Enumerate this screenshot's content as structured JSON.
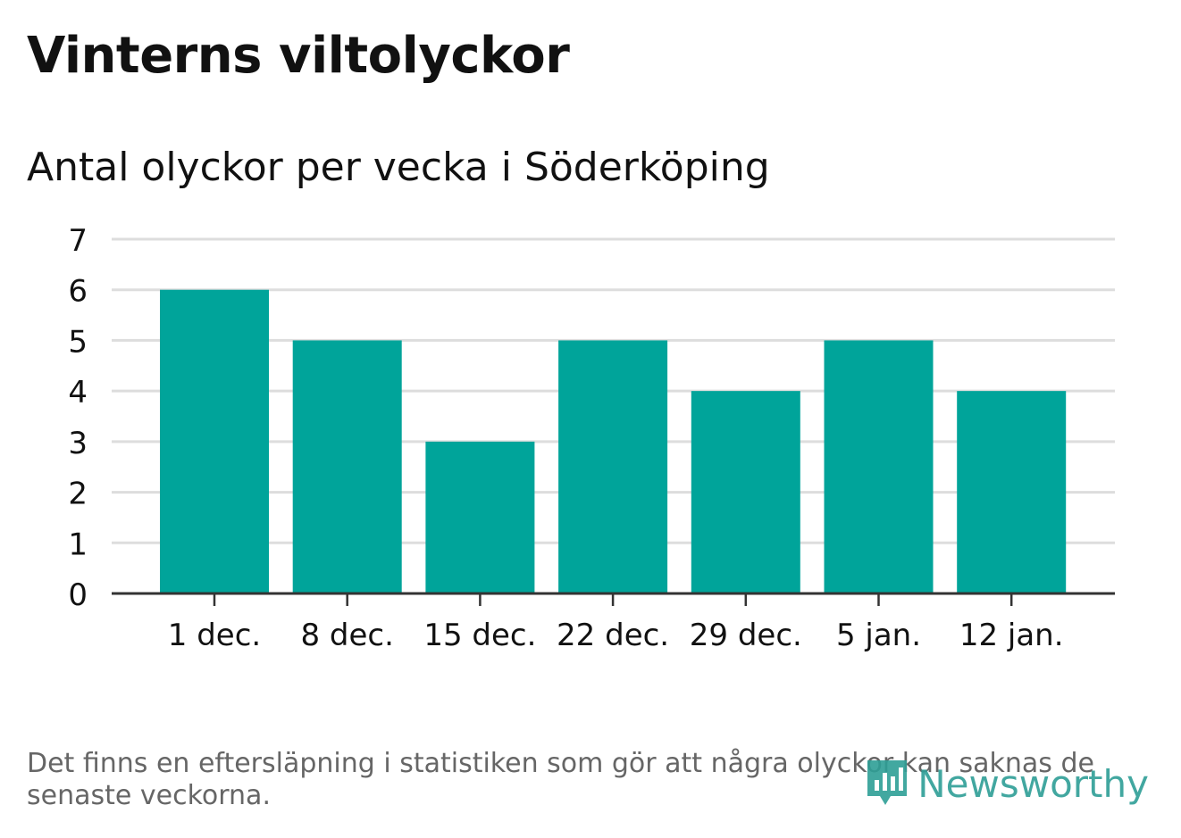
{
  "header": {
    "title": "Vinterns viltolyckor",
    "subtitle": "Antal olyckor per vecka i Söderköping"
  },
  "footer": {
    "note": "Det finns en eftersläpning i statistiken som gör att några olyckor kan saknas de senaste veckorna.",
    "brand": "Newsworthy",
    "brand_icon": "newsworthy-logo-icon"
  },
  "colors": {
    "bar": "#00a49a",
    "grid": "#dddddd",
    "axis": "#333333",
    "text": "#111111",
    "muted": "#666666",
    "brand": "#2e9e96"
  },
  "chart_data": {
    "type": "bar",
    "title": "Vinterns viltolyckor",
    "subtitle": "Antal olyckor per vecka i Söderköping",
    "categories": [
      "1 dec.",
      "8 dec.",
      "15 dec.",
      "22 dec.",
      "29 dec.",
      "5 jan.",
      "12 jan."
    ],
    "values": [
      6,
      5,
      3,
      5,
      4,
      5,
      4
    ],
    "ylim": [
      0,
      7
    ],
    "yticks": [
      0,
      1,
      2,
      3,
      4,
      5,
      6,
      7
    ],
    "grid": true,
    "legend": "none",
    "xlabel": "",
    "ylabel": ""
  }
}
